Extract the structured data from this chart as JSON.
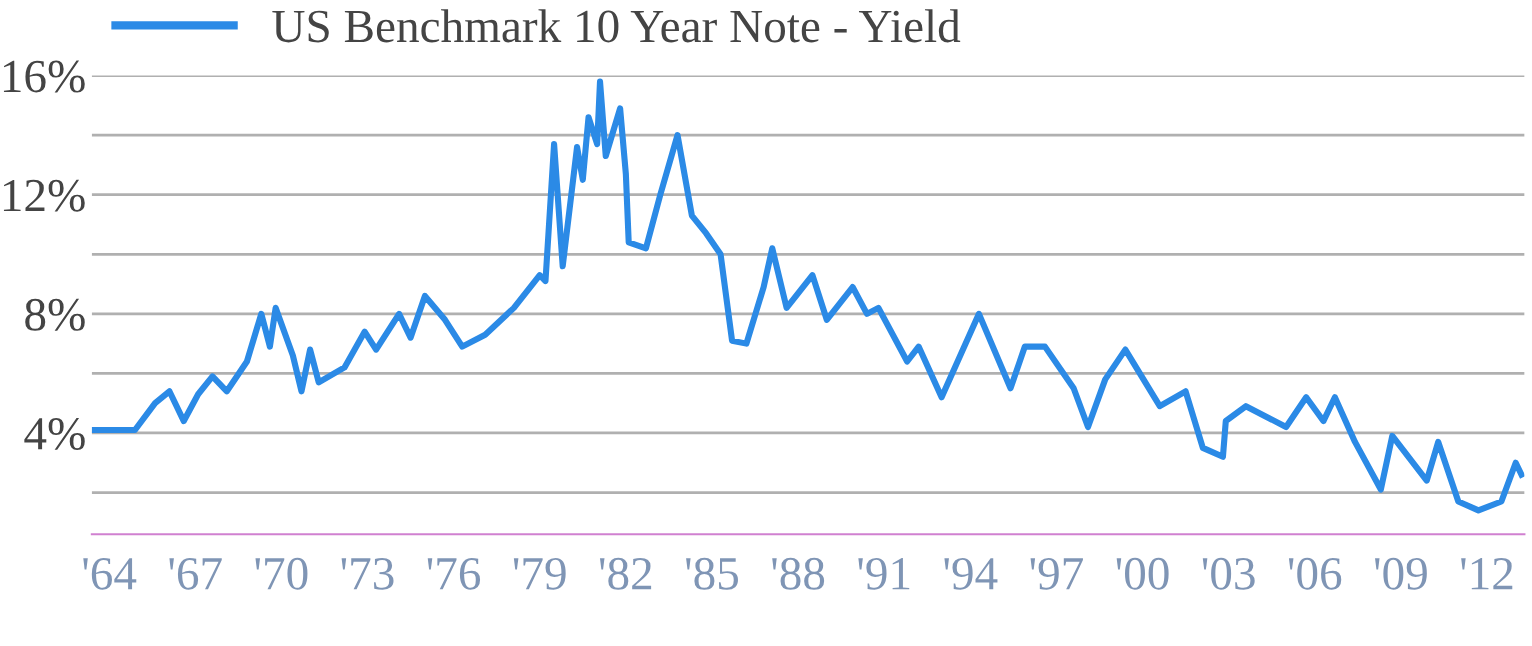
{
  "chart_data": {
    "type": "line",
    "legend": "top left",
    "grid": "y",
    "line_style": "solid",
    "marker": "none",
    "series": [
      {
        "name": "US Benchmark 10 Year Note - Yield",
        "color": "#2b8ae6",
        "x": [
          1963.4,
          1964.9,
          1965.6,
          1966.1,
          1966.6,
          1967.1,
          1967.6,
          1968.1,
          1968.8,
          1969.3,
          1969.6,
          1969.8,
          1970.4,
          1970.7,
          1971.0,
          1971.3,
          1972.2,
          1972.9,
          1973.3,
          1974.1,
          1974.5,
          1975.0,
          1975.7,
          1976.3,
          1977.1,
          1978.1,
          1979.0,
          1979.2,
          1979.5,
          1979.8,
          1980.3,
          1980.5,
          1980.7,
          1981.0,
          1981.1,
          1981.3,
          1981.8,
          1982.0,
          1982.1,
          1982.7,
          1983.2,
          1983.8,
          1984.3,
          1984.8,
          1985.3,
          1985.7,
          1986.2,
          1986.8,
          1987.1,
          1987.6,
          1988.5,
          1989.0,
          1989.9,
          1990.4,
          1990.8,
          1991.8,
          1992.2,
          1993.0,
          1994.3,
          1995.4,
          1995.9,
          1996.6,
          1997.6,
          1998.1,
          1998.7,
          1999.4,
          2000.6,
          2001.5,
          2002.1,
          2002.8,
          2002.9,
          2003.6,
          2005.0,
          2005.7,
          2006.3,
          2006.7,
          2007.4,
          2008.3,
          2008.7,
          2009.9,
          2010.3,
          2011.0,
          2011.7,
          2012.5,
          2013.0,
          2013.2
        ],
        "values": [
          4.1,
          4.1,
          5.0,
          5.4,
          4.4,
          5.3,
          5.9,
          5.4,
          6.4,
          8.0,
          6.9,
          8.2,
          6.6,
          5.4,
          6.8,
          5.7,
          6.2,
          7.4,
          6.8,
          8.0,
          7.2,
          8.6,
          7.8,
          6.9,
          7.3,
          8.2,
          9.3,
          9.1,
          13.7,
          9.6,
          13.6,
          12.5,
          14.6,
          13.7,
          15.8,
          13.3,
          14.9,
          12.7,
          10.4,
          10.2,
          12.0,
          14.0,
          11.3,
          10.7,
          10.0,
          7.1,
          7.0,
          8.9,
          10.2,
          8.2,
          9.3,
          7.8,
          8.9,
          8.0,
          8.2,
          6.4,
          6.9,
          5.2,
          8.0,
          5.5,
          6.9,
          6.9,
          5.5,
          4.2,
          5.8,
          6.8,
          4.9,
          5.4,
          3.5,
          3.2,
          4.4,
          4.9,
          4.2,
          5.2,
          4.4,
          5.2,
          3.7,
          2.1,
          3.9,
          2.4,
          3.7,
          1.7,
          1.4,
          1.7,
          3.0,
          2.6
        ]
      }
    ],
    "xlim": [
      1963.4,
      2013.3
    ],
    "xticks": [
      {
        "value": 1964,
        "label": "'64"
      },
      {
        "value": 1967,
        "label": "'67"
      },
      {
        "value": 1970,
        "label": "'70"
      },
      {
        "value": 1973,
        "label": "'73"
      },
      {
        "value": 1976,
        "label": "'76"
      },
      {
        "value": 1979,
        "label": "'79"
      },
      {
        "value": 1982,
        "label": "'82"
      },
      {
        "value": 1985,
        "label": "'85"
      },
      {
        "value": 1988,
        "label": "'88"
      },
      {
        "value": 1991,
        "label": "'91"
      },
      {
        "value": 1994,
        "label": "'94"
      },
      {
        "value": 1997,
        "label": "'97"
      },
      {
        "value": 2000,
        "label": "'00"
      },
      {
        "value": 2003,
        "label": "'03"
      },
      {
        "value": 2006,
        "label": "'06"
      },
      {
        "value": 2009,
        "label": "'09"
      },
      {
        "value": 2012,
        "label": "'12"
      }
    ],
    "ylim": [
      0.6,
      16
    ],
    "yticks": [
      {
        "value": 2,
        "label": null
      },
      {
        "value": 4,
        "label": "4%"
      },
      {
        "value": 6,
        "label": null
      },
      {
        "value": 8,
        "label": "8%"
      },
      {
        "value": 10,
        "label": null
      },
      {
        "value": 12,
        "label": "12%"
      },
      {
        "value": 14,
        "label": null
      },
      {
        "value": 16,
        "label": "16%"
      }
    ]
  }
}
